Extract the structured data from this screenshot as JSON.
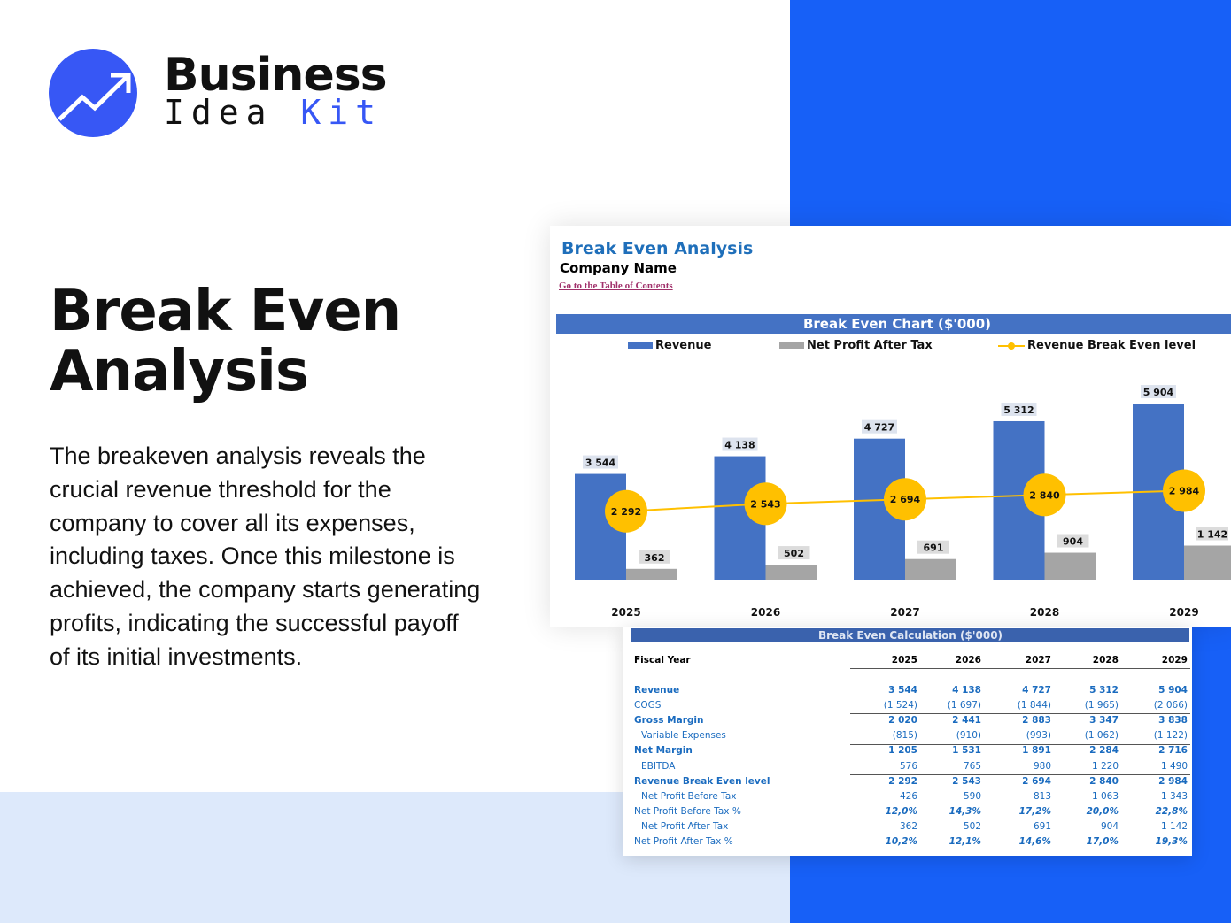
{
  "brand": {
    "line1": "Business",
    "line2a": "Idea",
    "line2b": "Kit",
    "accent": "#3757f5"
  },
  "headline": "Break Even Analysis",
  "description": "The breakeven analysis reveals the crucial revenue threshold for the company to cover all its expenses, including taxes. Once this milestone is achieved, the company starts generating profits, indicating the successful payoff of its initial investments.",
  "sheet": {
    "title": "Break Even Analysis",
    "company": "Company Name",
    "toc_link": "Go to the Table of Contents"
  },
  "chart_data": {
    "type": "bar",
    "title": "Break Even Chart ($'000)",
    "categories": [
      "2025",
      "2026",
      "2027",
      "2028",
      "2029"
    ],
    "series": [
      {
        "name": "Revenue",
        "type": "bar",
        "color": "#4472c4",
        "values": [
          3544,
          4138,
          4727,
          5312,
          5904
        ],
        "labels": [
          "3 544",
          "4 138",
          "4 727",
          "5 312",
          "5 904"
        ]
      },
      {
        "name": "Net Profit After Tax",
        "type": "bar",
        "color": "#a5a5a5",
        "values": [
          362,
          502,
          691,
          904,
          1142
        ],
        "labels": [
          "362",
          "502",
          "691",
          "904",
          "1 142"
        ]
      },
      {
        "name": "Revenue Break Even level",
        "type": "line",
        "color": "#ffc000",
        "values": [
          2292,
          2543,
          2694,
          2840,
          2984
        ],
        "labels": [
          "2 292",
          "2 543",
          "2 694",
          "2 840",
          "2 984"
        ]
      }
    ],
    "legend": "top",
    "grid": false
  },
  "table": {
    "title": "Break Even Calculation ($'000)",
    "header_label": "Fiscal Year",
    "years": [
      "2025",
      "2026",
      "2027",
      "2028",
      "2029"
    ],
    "rows": [
      {
        "label": "Revenue",
        "style": "b",
        "values": [
          "3 544",
          "4 138",
          "4 727",
          "5 312",
          "5 904"
        ]
      },
      {
        "label": "COGS",
        "style": "n",
        "values": [
          "(1 524)",
          "(1 697)",
          "(1 844)",
          "(1 965)",
          "(2 066)"
        ]
      },
      {
        "label": "Gross Margin",
        "style": "b",
        "values": [
          "2 020",
          "2 441",
          "2 883",
          "3 347",
          "3 838"
        ]
      },
      {
        "label": "Variable Expenses",
        "style": "sub",
        "values": [
          "(815)",
          "(910)",
          "(993)",
          "(1 062)",
          "(1 122)"
        ]
      },
      {
        "label": "Net Margin",
        "style": "b",
        "values": [
          "1 205",
          "1 531",
          "1 891",
          "2 284",
          "2 716"
        ]
      },
      {
        "label": "EBITDA",
        "style": "sub",
        "values": [
          "576",
          "765",
          "980",
          "1 220",
          "1 490"
        ]
      },
      {
        "label": "Revenue Break Even level",
        "style": "b",
        "values": [
          "2 292",
          "2 543",
          "2 694",
          "2 840",
          "2 984"
        ]
      },
      {
        "label": "Net Profit Before Tax",
        "style": "sub",
        "values": [
          "426",
          "590",
          "813",
          "1 063",
          "1 343"
        ]
      },
      {
        "label": "Net Profit Before Tax %",
        "style": "i",
        "values": [
          "12,0%",
          "14,3%",
          "17,2%",
          "20,0%",
          "22,8%"
        ]
      },
      {
        "label": "Net Profit After Tax",
        "style": "sub",
        "values": [
          "362",
          "502",
          "691",
          "904",
          "1 142"
        ]
      },
      {
        "label": "Net Profit After Tax %",
        "style": "i",
        "values": [
          "10,2%",
          "12,1%",
          "14,6%",
          "17,0%",
          "19,3%"
        ]
      }
    ]
  }
}
